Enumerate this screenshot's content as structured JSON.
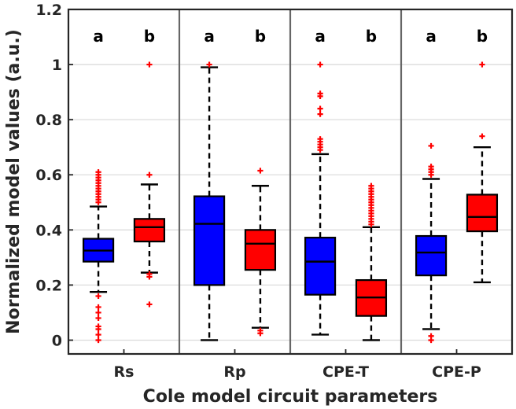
{
  "chart_data": {
    "type": "box",
    "xlabel": "Cole model circuit parameters",
    "ylabel": "Normalized model values (a.u.)",
    "ylim": [
      -0.05,
      1.2
    ],
    "yticks": [
      0,
      0.2,
      0.4,
      0.6,
      0.8,
      1,
      1.2
    ],
    "ytick_labels": [
      "0",
      "0.2",
      "0.4",
      "0.6",
      "0.8",
      "1",
      "1.2"
    ],
    "grid": true,
    "categories": [
      "Rs",
      "Rp",
      "CPE-T",
      "CPE-P"
    ],
    "groups": [
      {
        "category": "Rs",
        "boxes": [
          {
            "label": "a",
            "color": "#0000ff",
            "whisker_low": 0.175,
            "q1": 0.285,
            "median": 0.325,
            "q3": 0.368,
            "whisker_high": 0.485,
            "outliers": [
              0.0,
              0.02,
              0.04,
              0.05,
              0.08,
              0.1,
              0.12,
              0.16,
              0.5,
              0.51,
              0.52,
              0.53,
              0.54,
              0.55,
              0.56,
              0.57,
              0.58,
              0.59,
              0.6,
              0.61
            ]
          },
          {
            "label": "b",
            "color": "#ff0000",
            "whisker_low": 0.245,
            "q1": 0.358,
            "median": 0.41,
            "q3": 0.44,
            "whisker_high": 0.565,
            "outliers": [
              0.13,
              0.23,
              0.24,
              0.6,
              1.0
            ]
          }
        ]
      },
      {
        "category": "Rp",
        "boxes": [
          {
            "label": "a",
            "color": "#0000ff",
            "whisker_low": 0.0,
            "q1": 0.2,
            "median": 0.422,
            "q3": 0.522,
            "whisker_high": 0.99,
            "outliers": [
              1.0
            ]
          },
          {
            "label": "b",
            "color": "#ff0000",
            "whisker_low": 0.045,
            "q1": 0.255,
            "median": 0.35,
            "q3": 0.4,
            "whisker_high": 0.56,
            "outliers": [
              0.025,
              0.035,
              0.615
            ]
          }
        ]
      },
      {
        "category": "CPE-T",
        "boxes": [
          {
            "label": "a",
            "color": "#0000ff",
            "whisker_low": 0.02,
            "q1": 0.165,
            "median": 0.285,
            "q3": 0.372,
            "whisker_high": 0.675,
            "outliers": [
              0.69,
              0.7,
              0.71,
              0.72,
              0.73,
              0.82,
              0.84,
              0.885,
              0.895,
              1.0
            ]
          },
          {
            "label": "b",
            "color": "#ff0000",
            "whisker_low": 0.0,
            "q1": 0.088,
            "median": 0.155,
            "q3": 0.218,
            "whisker_high": 0.41,
            "outliers": [
              0.42,
              0.43,
              0.44,
              0.45,
              0.46,
              0.47,
              0.48,
              0.49,
              0.5,
              0.51,
              0.52,
              0.53,
              0.54,
              0.55,
              0.56
            ]
          }
        ]
      },
      {
        "category": "CPE-P",
        "boxes": [
          {
            "label": "a",
            "color": "#0000ff",
            "whisker_low": 0.04,
            "q1": 0.235,
            "median": 0.318,
            "q3": 0.378,
            "whisker_high": 0.585,
            "outliers": [
              0.0,
              0.015,
              0.6,
              0.61,
              0.62,
              0.63,
              0.705
            ]
          },
          {
            "label": "b",
            "color": "#ff0000",
            "whisker_low": 0.21,
            "q1": 0.395,
            "median": 0.447,
            "q3": 0.528,
            "whisker_high": 0.7,
            "outliers": [
              0.74,
              1.0
            ]
          }
        ]
      }
    ],
    "colors": {
      "a": "#0000ff",
      "b": "#ff0000",
      "outlier": "#ff0000"
    }
  }
}
